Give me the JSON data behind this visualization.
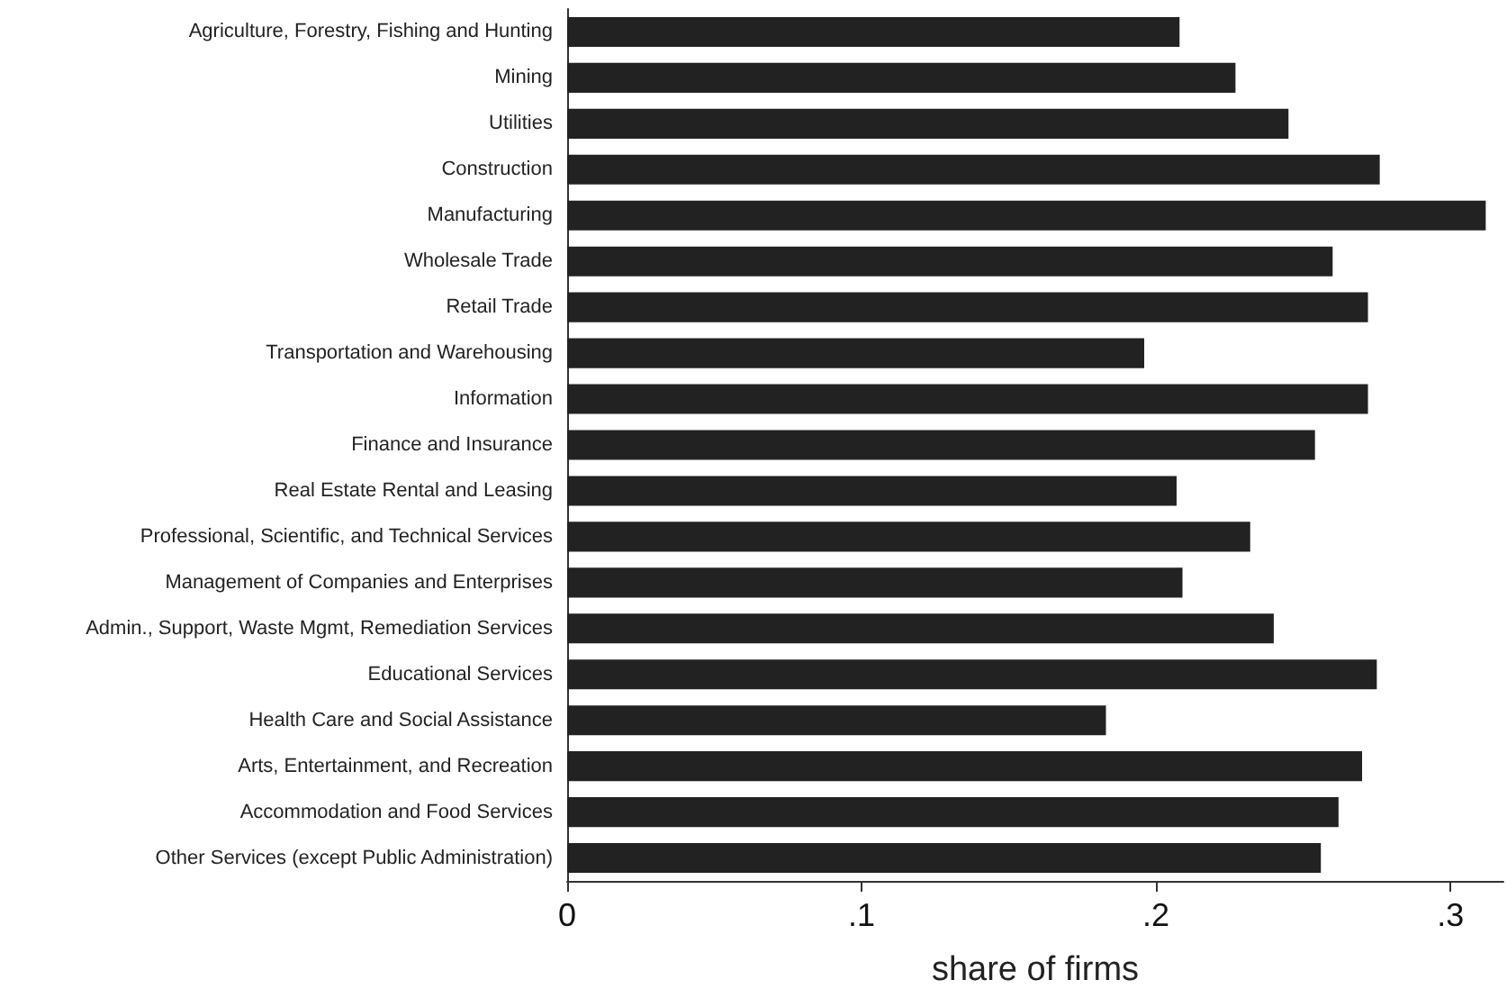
{
  "chart_data": {
    "type": "bar",
    "orientation": "horizontal",
    "xlabel": "share of firms",
    "categories": [
      "Agriculture, Forestry, Fishing and Hunting",
      "Mining",
      "Utilities",
      "Construction",
      "Manufacturing",
      "Wholesale Trade",
      "Retail Trade",
      "Transportation and Warehousing",
      "Information",
      "Finance and Insurance",
      "Real Estate Rental and Leasing",
      "Professional, Scientific, and Technical Services",
      "Management of Companies and Enterprises",
      "Admin., Support, Waste Mgmt, Remediation Services",
      "Educational Services",
      "Health Care and Social Assistance",
      "Arts, Entertainment, and Recreation",
      "Accommodation and Food Services",
      "Other Services (except Public Administration)"
    ],
    "values": [
      0.208,
      0.227,
      0.245,
      0.276,
      0.312,
      0.26,
      0.272,
      0.196,
      0.272,
      0.254,
      0.207,
      0.232,
      0.209,
      0.24,
      0.275,
      0.183,
      0.27,
      0.262,
      0.256
    ],
    "color": "#222222",
    "xlim": [
      0,
      0.318
    ],
    "xticks": [
      {
        "value": 0,
        "label": "0"
      },
      {
        "value": 0.1,
        "label": ".1"
      },
      {
        "value": 0.2,
        "label": ".2"
      },
      {
        "value": 0.3,
        "label": ".3"
      }
    ],
    "grid": false
  }
}
